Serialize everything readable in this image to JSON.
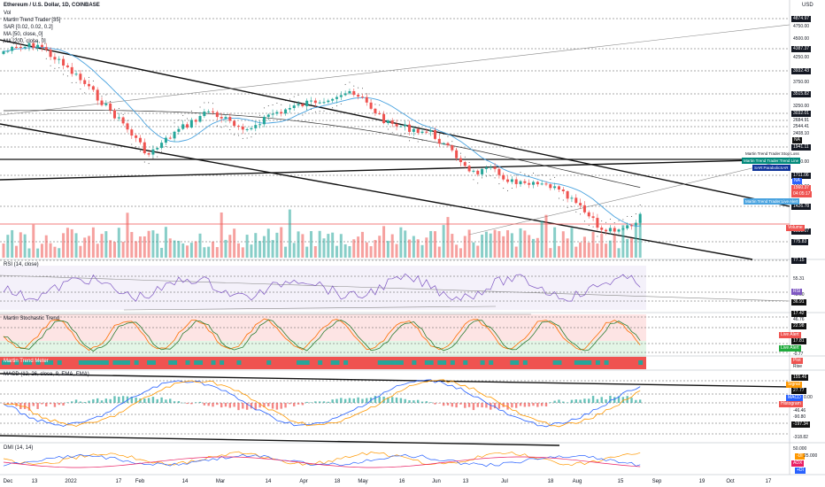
{
  "header": {
    "symbol": "Ethereum / U.S. Dollar, 1D, COINBASE",
    "vol": "Vol",
    "ind1": "Martin Trend Trader [35]",
    "ind2": "SAR [0.02, 0.02, 0.2]",
    "ind3": "MA [50, close, 0]",
    "ind4": "MA [200, close, 0]"
  },
  "currency": "USD",
  "price_labels": [
    "4874.97",
    "4750.00",
    "4500.00",
    "4387.37",
    "4250.00",
    "3932.43",
    "3750.00",
    "3515.82",
    "3250.00",
    "3032.01",
    "2684.91",
    "2544.41",
    "2408.10",
    "1941.11",
    "2250.00",
    "1711.06",
    "1560.37",
    "1426.78",
    "1081.07",
    "775.83",
    "77.15"
  ],
  "badges": {
    "na1": "NA",
    "na2": "NA",
    "stop_loss": "Martin Trend Trader:Stop Loss",
    "trend_line": "Martin Trend Trader:Trend Line",
    "psar": "SAR:ParabolicSAR",
    "price_now": "1560.37",
    "countdown": "04:05:17",
    "live_alert_main": "Martin Trend Trader:Live Alert",
    "volume": "Volume"
  },
  "rsi": {
    "title": "RSI (14, close)",
    "labels": [
      "55.31",
      "45.00",
      "36.91"
    ],
    "badge": "RSI"
  },
  "stoch": {
    "title": "Martin Stochastic Trend",
    "labels": [
      "17.42",
      "46.76",
      "22.98",
      "17.81",
      "-0.77"
    ],
    "live_alert_1": "Live Alert",
    "live_alert_2": "Live Alert"
  },
  "tmeter": {
    "title": "Martin Trend Meter",
    "plot": "Plot",
    "rise": "Rise"
  },
  "macd": {
    "title": "MACD (12, 26, close, 9, EMA, EMA)",
    "labels": [
      "155.46",
      "27.77",
      "0.00",
      "-46.46",
      "-90.80",
      "-197.34",
      "-318.82"
    ],
    "signal": "Signal",
    "macd": "MACD",
    "histogram": "Histogram"
  },
  "dmi": {
    "title": "DMI (14, 14)",
    "labels": [
      "50.000",
      "25.000"
    ],
    "badge_di_minus": "-DI",
    "badge_adx": "ADX",
    "badge_di_plus": "+DI"
  },
  "x_axis": [
    "Dec",
    "13",
    "2022",
    "17",
    "Feb",
    "14",
    "Mar",
    "14",
    "Apr",
    "18",
    "May",
    "16",
    "Jun",
    "13",
    "Jul",
    "18",
    "Aug",
    "15",
    "Sep",
    "19",
    "Oct",
    "17"
  ],
  "colors": {
    "up": "#26a69a",
    "down": "#ef5350",
    "ma50": "#4aa3df",
    "ma200": "#333333",
    "rsi": "#7e57c2",
    "teal": "#00897b",
    "navy": "#0c3299"
  }
}
